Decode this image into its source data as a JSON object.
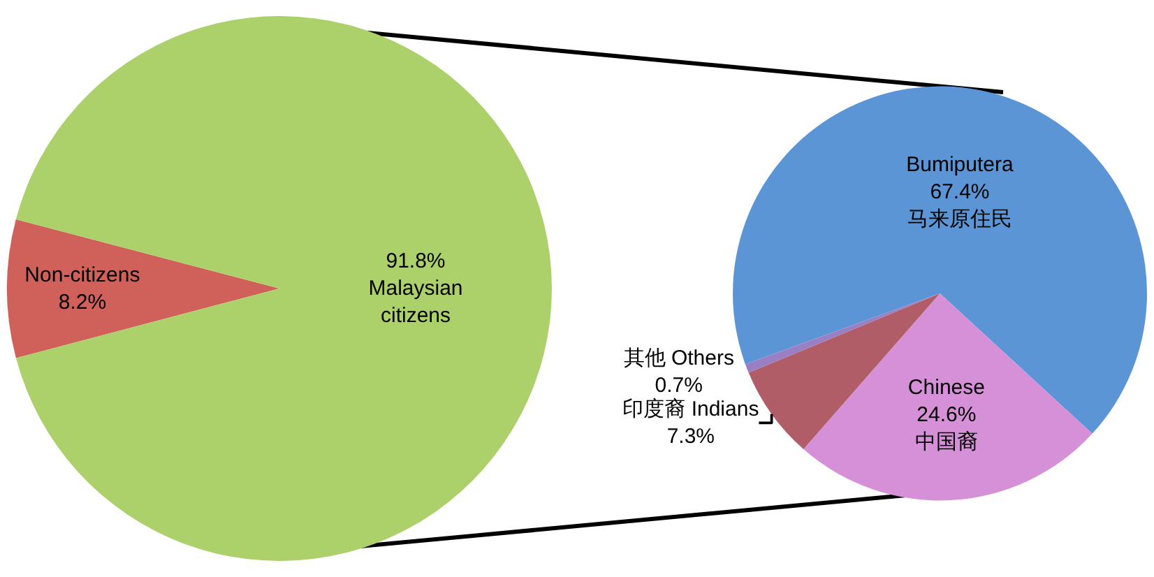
{
  "chart_data": [
    {
      "type": "pie",
      "categories": [
        "Non-citizens\n8.2%",
        "91.8%\nMalaysian\ncitizens"
      ],
      "values": [
        8.2,
        91.8
      ],
      "colors": [
        "#d0605a",
        "#acd06a"
      ]
    },
    {
      "type": "pie",
      "categories": [
        "Bumiputera\n67.4%\n马来原住民",
        "Chinese\n24.6%\n中国裔",
        "印度裔 Indians\n7.3%",
        "其他 Others\n0.7%"
      ],
      "values": [
        67.4,
        24.6,
        7.3,
        0.7
      ],
      "colors": [
        "#5b95d5",
        "#d690d8",
        "#b05d67",
        "#9a7fc4"
      ]
    }
  ]
}
